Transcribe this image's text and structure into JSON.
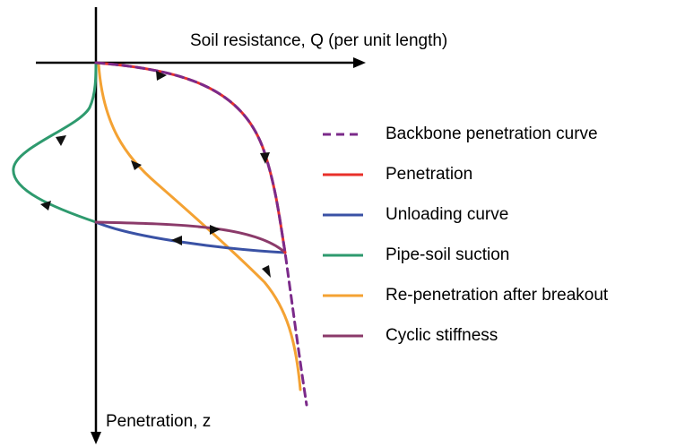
{
  "axes": {
    "x_label": "Soil resistance, Q (per unit length)",
    "y_label": "Penetration, z"
  },
  "legend": [
    {
      "name": "Backbone penetration curve",
      "color": "#7b2a8a",
      "dashed": true
    },
    {
      "name": "Penetration",
      "color": "#e8302a",
      "dashed": false
    },
    {
      "name": "Unloading curve",
      "color": "#3a52a5",
      "dashed": false
    },
    {
      "name": "Pipe-soil suction",
      "color": "#2e9a6e",
      "dashed": false
    },
    {
      "name": "Re-penetration after breakout",
      "color": "#f4a233",
      "dashed": false
    },
    {
      "name": "Cyclic stiffness",
      "color": "#8b3a6a",
      "dashed": false
    }
  ]
}
